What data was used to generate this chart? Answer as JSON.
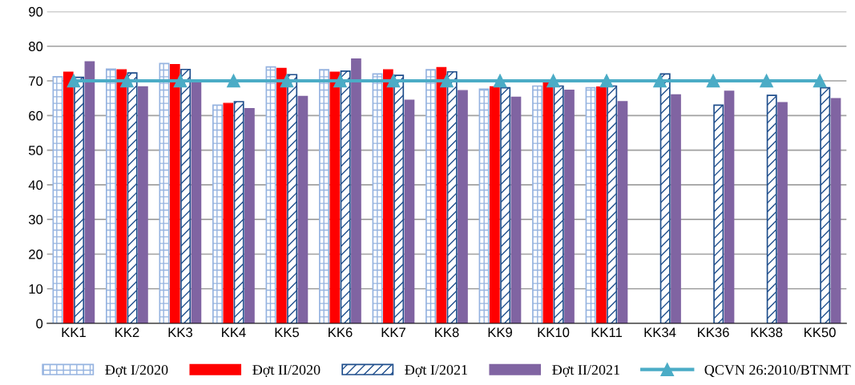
{
  "chart_data": {
    "type": "bar",
    "categories": [
      "KK1",
      "KK2",
      "KK3",
      "KK4",
      "KK5",
      "KK6",
      "KK7",
      "KK8",
      "KK9",
      "KK10",
      "KK11",
      "KK34",
      "KK36",
      "KK38",
      "KK50"
    ],
    "series": [
      {
        "name": "Đợt I/2020",
        "color": "#95b3e0",
        "values": [
          71.2,
          73.4,
          75,
          63,
          74,
          73.2,
          72,
          73.2,
          67.6,
          68.5,
          68,
          null,
          null,
          null,
          null
        ]
      },
      {
        "name": "Đợt II/2020",
        "color": "#ff0000",
        "values": [
          72.5,
          73.2,
          74.7,
          63.5,
          73.6,
          72.5,
          73.2,
          73.8,
          68.3,
          69.5,
          68.2,
          null,
          null,
          null,
          null
        ]
      },
      {
        "name": "Đợt I/2021",
        "color": "#1f4e8c",
        "values": [
          71,
          72.3,
          73.3,
          64,
          71.8,
          72.8,
          71.6,
          72.6,
          68,
          68.5,
          68.5,
          72,
          63,
          65.8,
          68
        ]
      },
      {
        "name": "Đợt II/2021",
        "color": "#8064a2",
        "values": [
          75.5,
          68.3,
          69.8,
          62,
          65.5,
          76.3,
          64.4,
          67.2,
          65.3,
          67.3,
          64,
          66,
          67,
          63.7,
          64.9
        ]
      },
      {
        "name": "QCVN 26:2010/BTNMT",
        "type": "line",
        "color": "#4bacc6",
        "marker": "triangle",
        "values": [
          70,
          70,
          70,
          70,
          70,
          70,
          70,
          70,
          70,
          70,
          70,
          70,
          70,
          70,
          70
        ]
      }
    ],
    "ylim": [
      0,
      90
    ],
    "yticks": [
      0,
      10,
      20,
      30,
      40,
      50,
      60,
      70,
      80,
      90
    ],
    "grid": "y",
    "legend": "bottom"
  }
}
